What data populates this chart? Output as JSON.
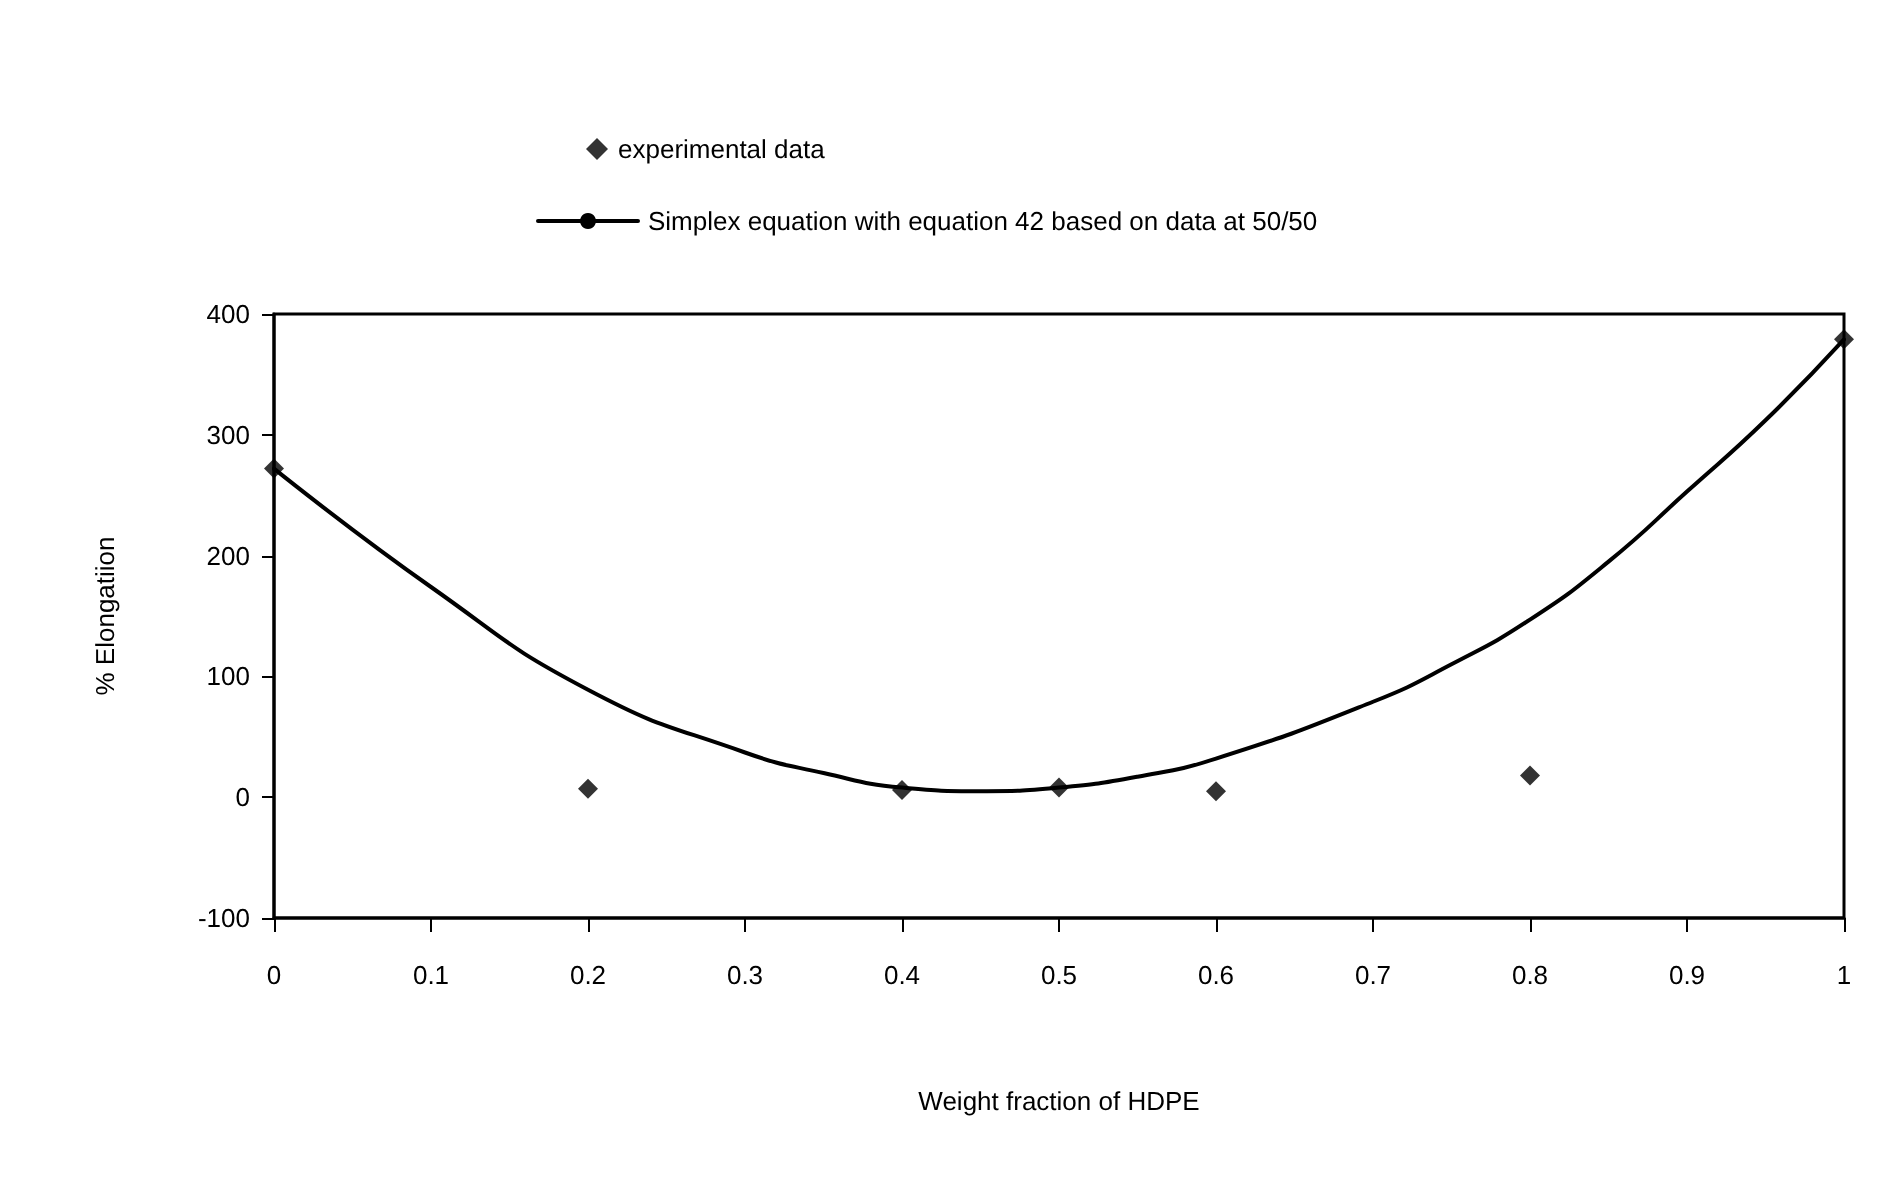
{
  "chart_data": {
    "type": "scatter",
    "xlabel": "Weight fraction of HDPE",
    "ylabel": "% Elongatiion",
    "xlim": [
      0,
      1
    ],
    "xticks": [
      0,
      0.1,
      0.2,
      0.3,
      0.4,
      0.5,
      0.6,
      0.7,
      0.8,
      0.9,
      1
    ],
    "ylim": [
      -100,
      400
    ],
    "yticks": [
      -100,
      0,
      100,
      200,
      300,
      400
    ],
    "grid": false,
    "legend": "top",
    "series": [
      {
        "name": "experimental data",
        "marker": "diamond",
        "color": "#000000",
        "x": [
          0,
          0.2,
          0.4,
          0.5,
          0.6,
          0.8,
          1
        ],
        "values": [
          272,
          7,
          6,
          8,
          5,
          18,
          379
        ]
      },
      {
        "name": "Simplex equation with equation 42 based on data at 50/50",
        "type": "line",
        "marker": "none",
        "line_style": "solid",
        "color": "#000000",
        "x": [
          0,
          0.1,
          0.2,
          0.3,
          0.35,
          0.4,
          0.45,
          0.5,
          0.55,
          0.6,
          0.7,
          0.75,
          0.8,
          0.85,
          0.9,
          0.95,
          1
        ],
        "values": [
          272,
          174,
          89,
          37,
          20,
          8,
          5,
          8,
          17,
          32,
          79,
          110,
          147,
          195,
          253,
          312,
          379
        ]
      }
    ]
  }
}
